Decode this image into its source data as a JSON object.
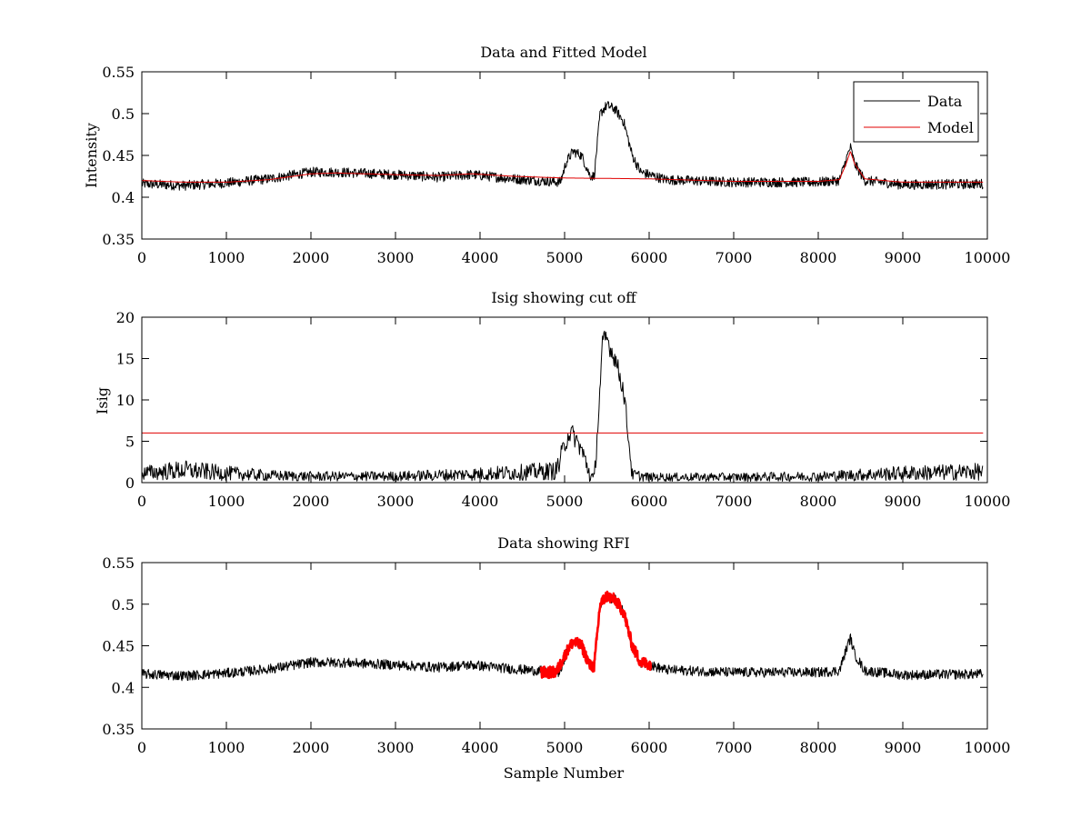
{
  "colors": {
    "background": "#ffffff",
    "data_line": "#000000",
    "model_line": "#e00000",
    "rfi_line": "#ff0000",
    "axes": "#000000"
  },
  "chart_data": [
    {
      "type": "line",
      "title": "Data and Fitted Model",
      "xlabel": "",
      "ylabel": "Intensity",
      "xlim": [
        0,
        10000
      ],
      "ylim": [
        0.35,
        0.55
      ],
      "xticks": [
        "0",
        "1000",
        "2000",
        "3000",
        "4000",
        "5000",
        "6000",
        "7000",
        "8000",
        "9000",
        "10000"
      ],
      "yticks": [
        "0.35",
        "0.4",
        "0.45",
        "0.5",
        "0.55"
      ],
      "legend": {
        "placement": "top-right",
        "entries": [
          "Data",
          "Model"
        ]
      },
      "grid": false,
      "series": [
        {
          "name": "Data",
          "color": "#000000",
          "noise": 0.006,
          "x": [
            0,
            500,
            1000,
            1500,
            2000,
            2300,
            3000,
            3500,
            3900,
            4400,
            4950,
            5020,
            5100,
            5200,
            5300,
            5350,
            5420,
            5500,
            5600,
            5700,
            5800,
            5900,
            6200,
            7000,
            8000,
            8250,
            8330,
            8380,
            8430,
            8550,
            9000,
            9950
          ],
          "y": [
            0.416,
            0.414,
            0.417,
            0.422,
            0.43,
            0.43,
            0.427,
            0.424,
            0.427,
            0.422,
            0.418,
            0.442,
            0.455,
            0.45,
            0.426,
            0.425,
            0.5,
            0.51,
            0.505,
            0.49,
            0.45,
            0.43,
            0.421,
            0.418,
            0.418,
            0.42,
            0.445,
            0.46,
            0.44,
            0.42,
            0.415,
            0.416
          ]
        },
        {
          "name": "Model",
          "color": "#e00000",
          "noise": 0,
          "x": [
            0,
            500,
            1000,
            1500,
            2000,
            2300,
            3000,
            3500,
            3900,
            4400,
            5000,
            6000,
            7000,
            8000,
            8250,
            8330,
            8380,
            8430,
            8550,
            9000,
            9950
          ],
          "y": [
            0.42,
            0.418,
            0.418,
            0.421,
            0.428,
            0.429,
            0.427,
            0.426,
            0.428,
            0.425,
            0.423,
            0.422,
            0.419,
            0.419,
            0.421,
            0.44,
            0.455,
            0.44,
            0.422,
            0.418,
            0.418
          ]
        }
      ]
    },
    {
      "type": "line",
      "title": "Isig showing cut off",
      "xlabel": "",
      "ylabel": "Isig",
      "xlim": [
        0,
        10000
      ],
      "ylim": [
        0,
        20
      ],
      "xticks": [
        "0",
        "1000",
        "2000",
        "3000",
        "4000",
        "5000",
        "6000",
        "7000",
        "8000",
        "9000",
        "10000"
      ],
      "yticks": [
        "0",
        "5",
        "10",
        "15",
        "20"
      ],
      "grid": false,
      "series": [
        {
          "color": "#000000",
          "style": "isig",
          "x": [
            0,
            500,
            1000,
            1500,
            2000,
            3000,
            4000,
            4900,
            5000,
            5050,
            5100,
            5200,
            5300,
            5350,
            5400,
            5450,
            5500,
            5550,
            5600,
            5700,
            5750,
            5800,
            6000,
            7000,
            8000,
            9000,
            9950
          ],
          "y": [
            1.2,
            1.6,
            1.2,
            0.9,
            0.8,
            0.8,
            1.1,
            1.5,
            4.5,
            6.0,
            5.8,
            4.0,
            1.0,
            0.0,
            8.0,
            17.0,
            17.5,
            16.0,
            15.0,
            11.0,
            6.0,
            1.0,
            0.7,
            0.7,
            0.8,
            1.2,
            1.4
          ]
        },
        {
          "color": "#e00000",
          "x": [
            0,
            9950
          ],
          "y": [
            6,
            6
          ]
        }
      ]
    },
    {
      "type": "line",
      "title": "Data showing RFI",
      "xlabel": "Sample Number",
      "ylabel": "",
      "xlim": [
        0,
        10000
      ],
      "ylim": [
        0.35,
        0.55
      ],
      "xticks": [
        "0",
        "1000",
        "2000",
        "3000",
        "4000",
        "5000",
        "6000",
        "7000",
        "8000",
        "9000",
        "10000"
      ],
      "yticks": [
        "0.35",
        "0.4",
        "0.45",
        "0.5",
        "0.55"
      ],
      "grid": false,
      "series": [
        {
          "color": "#000000",
          "noise": 0.006,
          "x": [
            0,
            500,
            1000,
            1500,
            2000,
            2300,
            3000,
            3500,
            3900,
            4400,
            4950,
            5020,
            5100,
            5200,
            5300,
            5350,
            5420,
            5500,
            5600,
            5700,
            5800,
            5900,
            6200,
            7000,
            8000,
            8250,
            8330,
            8380,
            8430,
            8550,
            9000,
            9950
          ],
          "y": [
            0.416,
            0.414,
            0.417,
            0.422,
            0.43,
            0.43,
            0.427,
            0.424,
            0.427,
            0.422,
            0.418,
            0.442,
            0.455,
            0.45,
            0.426,
            0.425,
            0.5,
            0.51,
            0.505,
            0.49,
            0.45,
            0.43,
            0.421,
            0.418,
            0.418,
            0.42,
            0.445,
            0.46,
            0.44,
            0.42,
            0.415,
            0.416
          ]
        },
        {
          "color": "#ff0000",
          "style": "rfi-flagged",
          "noise": 0.007,
          "x": [
            4720,
            4900,
            5020,
            5100,
            5200,
            5300,
            5350,
            5420,
            5500,
            5600,
            5700,
            5800,
            5900,
            6020
          ],
          "y": [
            0.418,
            0.418,
            0.442,
            0.455,
            0.45,
            0.426,
            0.425,
            0.5,
            0.51,
            0.505,
            0.49,
            0.45,
            0.43,
            0.428
          ]
        }
      ]
    }
  ]
}
